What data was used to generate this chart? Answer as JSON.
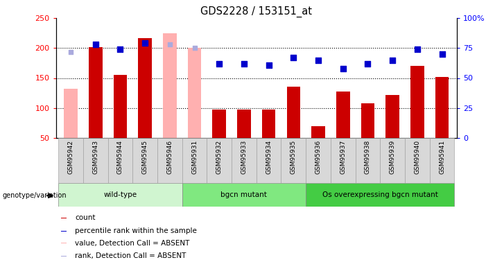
{
  "title": "GDS2228 / 153151_at",
  "samples": [
    "GSM95942",
    "GSM95943",
    "GSM95944",
    "GSM95945",
    "GSM95946",
    "GSM95931",
    "GSM95932",
    "GSM95933",
    "GSM95934",
    "GSM95935",
    "GSM95936",
    "GSM95937",
    "GSM95938",
    "GSM95939",
    "GSM95940",
    "GSM95941"
  ],
  "bar_values": [
    null,
    202,
    155,
    217,
    null,
    null,
    97,
    97,
    97,
    135,
    70,
    127,
    108,
    122,
    170,
    152
  ],
  "bar_absent_values": [
    132,
    null,
    null,
    null,
    225,
    200,
    null,
    null,
    null,
    null,
    null,
    null,
    null,
    null,
    null,
    null
  ],
  "rank_values": [
    null,
    78,
    74,
    79,
    null,
    null,
    62,
    62,
    61,
    67,
    65,
    58,
    62,
    65,
    74,
    70
  ],
  "rank_absent_values": [
    72,
    null,
    null,
    null,
    78,
    75,
    null,
    null,
    null,
    null,
    null,
    null,
    null,
    null,
    null,
    null
  ],
  "groups": [
    {
      "label": "wild-type",
      "start": 0,
      "end": 4,
      "color": "#d0f5d0"
    },
    {
      "label": "bgcn mutant",
      "start": 5,
      "end": 9,
      "color": "#80e880"
    },
    {
      "label": "Os overexpressing bgcn mutant",
      "start": 10,
      "end": 15,
      "color": "#44cc44"
    }
  ],
  "bar_color": "#cc0000",
  "bar_absent_color": "#ffb0b0",
  "rank_color": "#0000cc",
  "rank_absent_color": "#aaaadd",
  "ylim_left": [
    50,
    250
  ],
  "ylim_right": [
    0,
    100
  ],
  "yticks_left": [
    50,
    100,
    150,
    200,
    250
  ],
  "yticks_right": [
    0,
    25,
    50,
    75,
    100
  ],
  "grid_lines_at": [
    100,
    150,
    200
  ],
  "legend": [
    {
      "color": "#cc0000",
      "label": "count"
    },
    {
      "color": "#0000cc",
      "label": "percentile rank within the sample"
    },
    {
      "color": "#ffb0b0",
      "label": "value, Detection Call = ABSENT"
    },
    {
      "color": "#aaaadd",
      "label": "rank, Detection Call = ABSENT"
    }
  ]
}
